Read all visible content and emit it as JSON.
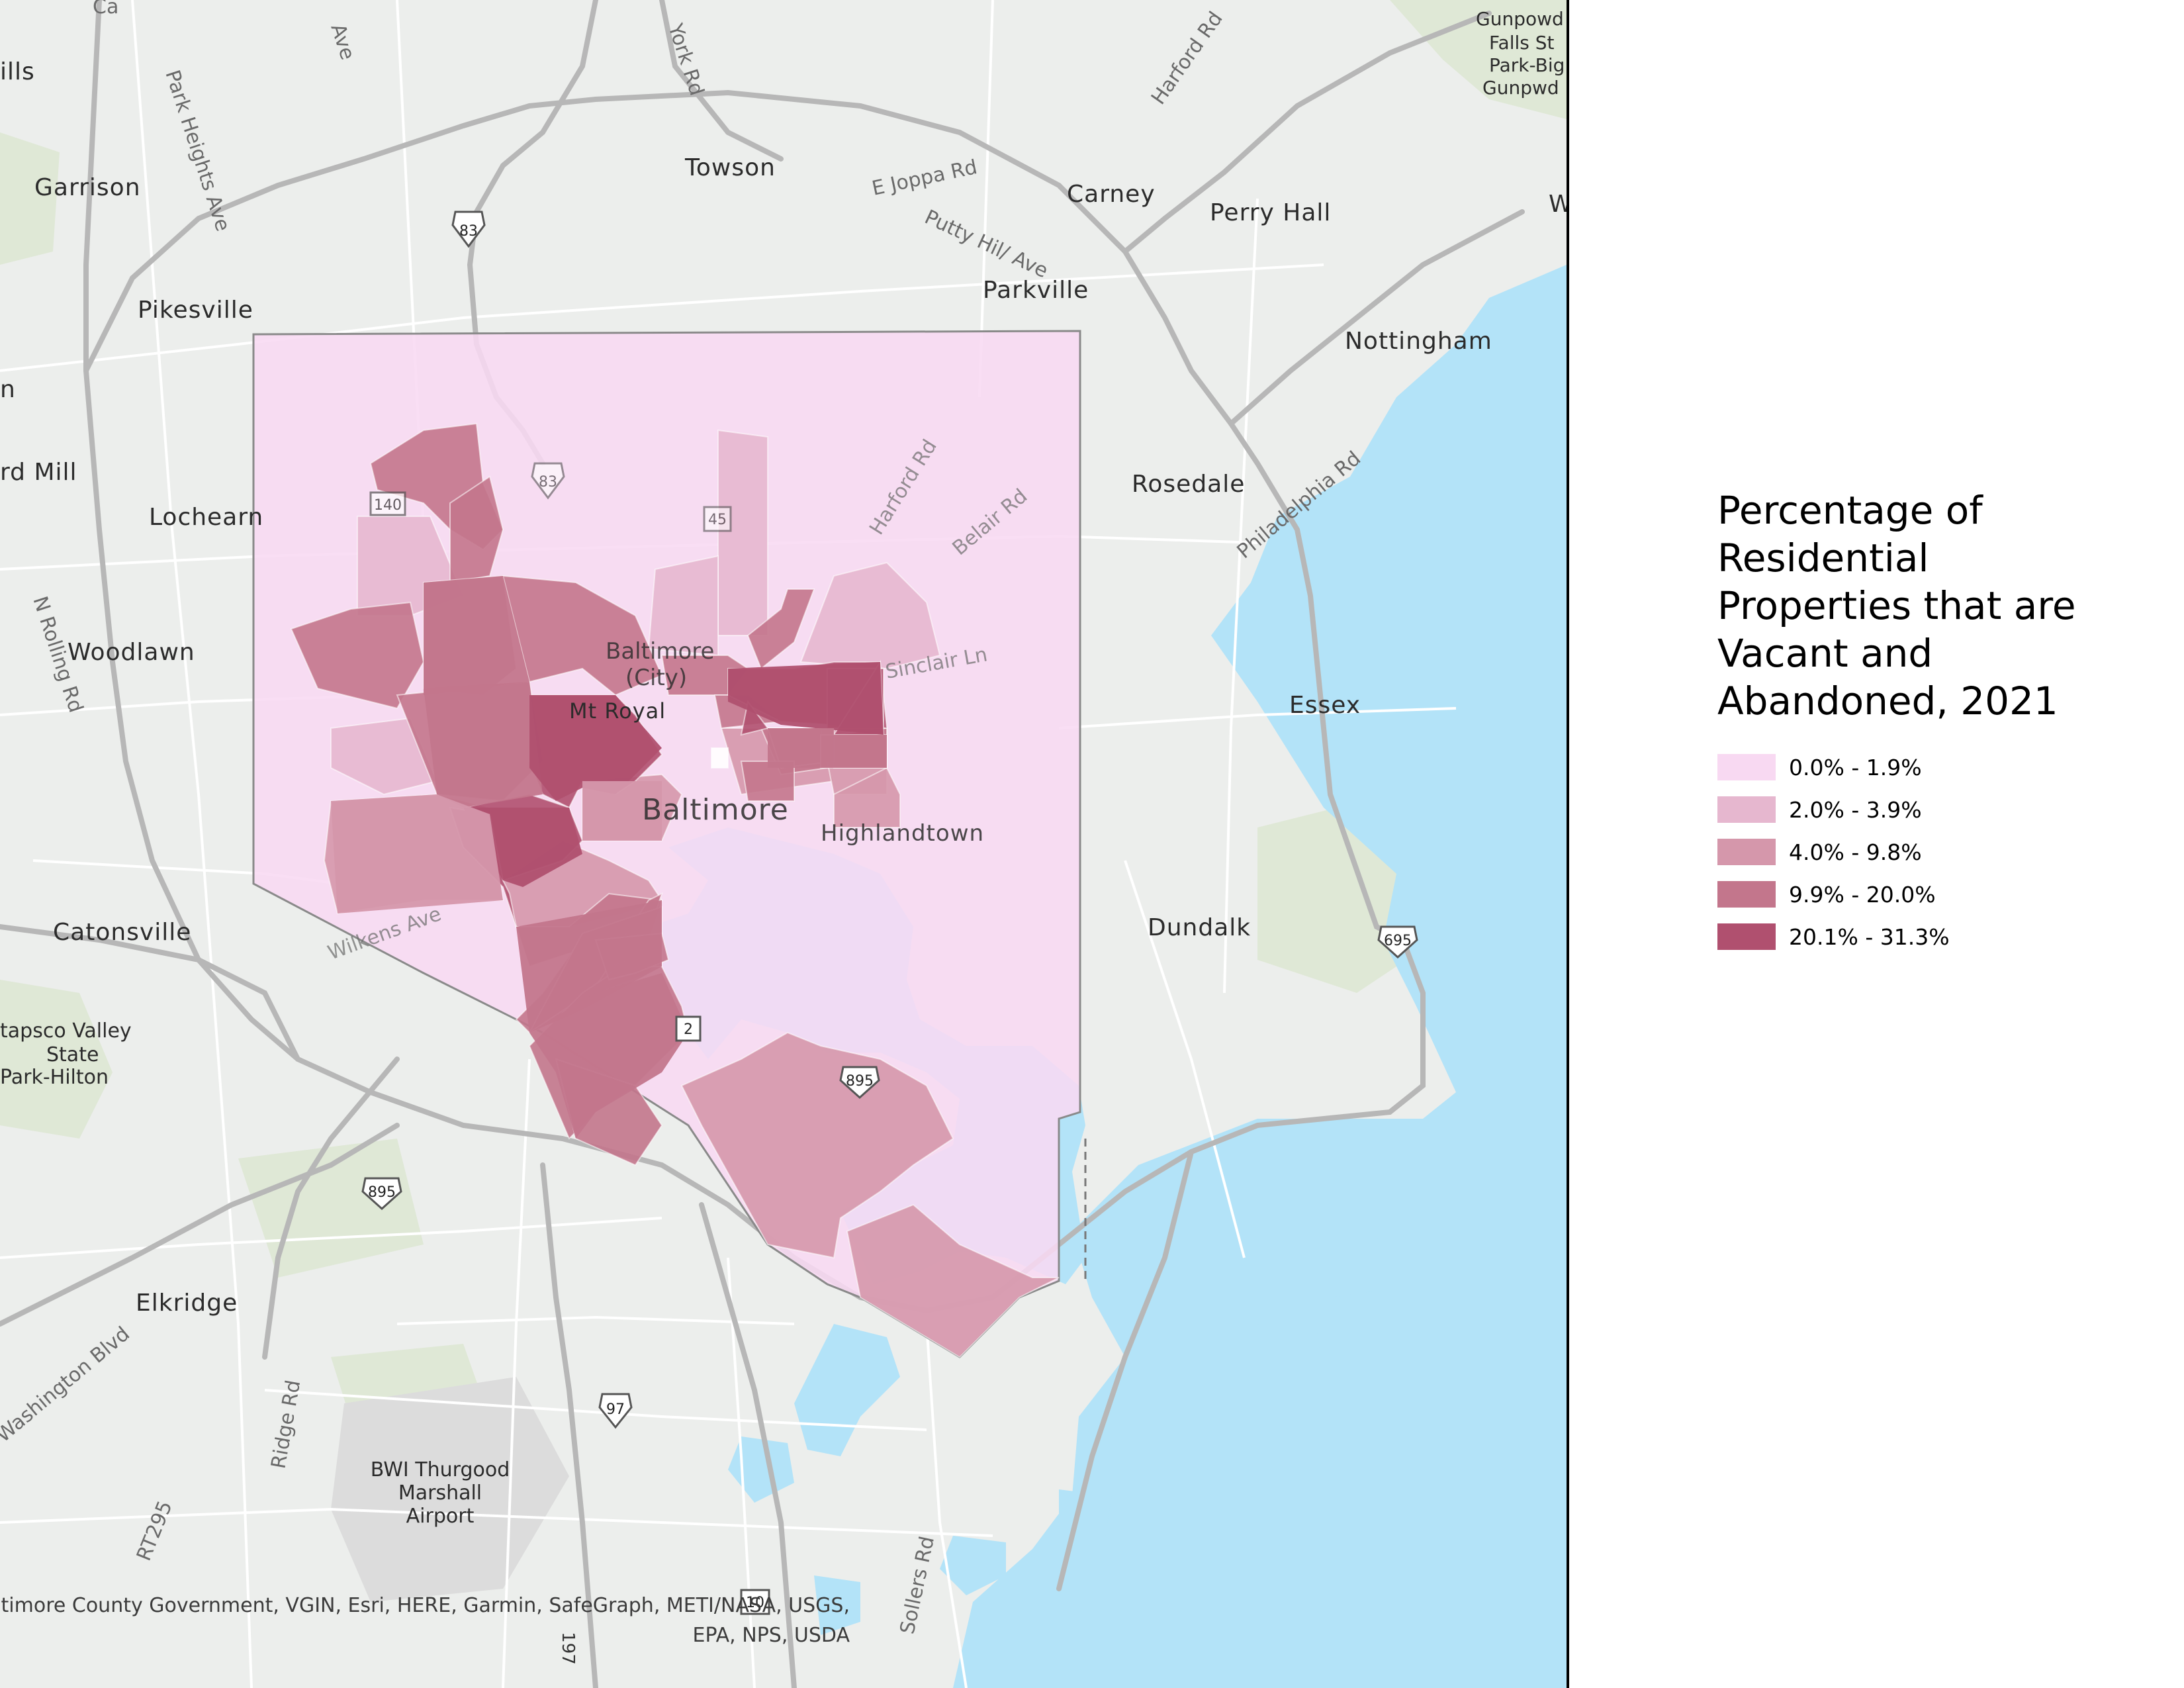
{
  "legend": {
    "title": "Percentage of\nResidential\nProperties that are\nVacant and\nAbandoned, 2021",
    "classes": [
      {
        "label": "0.0% - 1.9%",
        "color": "#f8d9f2"
      },
      {
        "label": "2.0% - 3.9%",
        "color": "#e6b7cf"
      },
      {
        "label": "4.0% - 9.8%",
        "color": "#d597ab"
      },
      {
        "label": "9.9% - 20.0%",
        "color": "#c3768c"
      },
      {
        "label": "20.1% - 31.3%",
        "color": "#b0506f"
      }
    ]
  },
  "places": {
    "towson": "Towson",
    "carney": "Carney",
    "perry_hall": "Perry Hall",
    "parkville": "Parkville",
    "nottingham": "Nottingham",
    "rosedale": "Rosedale",
    "essex": "Essex",
    "dundalk": "Dundalk",
    "garrison": "Garrison",
    "pikesville": "Pikesville",
    "lochearn": "Lochearn",
    "woodlawn": "Woodlawn",
    "catonsville": "Catonsville",
    "elkridge": "Elkridge",
    "baltimore": "Baltimore",
    "baltimore_city": "Baltimore\n(City)",
    "mt_royal": "Mt Royal",
    "highlandtown": "Highlandtown",
    "ills": "ills",
    "rd_mill": "rd Mill",
    "n": "n",
    "w": "W",
    "gunpowder": "Gunpowd\nFalls St\nPark-Big\nGunpwd",
    "patapsco": "tapsco Valley\nState\nPark-Hilton",
    "bwi": "BWI Thurgood\nMarshall\nAirport"
  },
  "roads": {
    "york_rd": "York Rd",
    "harford_rd_n": "Harford Rd",
    "e_joppa_rd": "E Joppa Rd",
    "putty_hill_ave": "Putty Hil/ Ave",
    "park_heights_ave": "Park Heights Ave",
    "n_rolling_rd": "N Rolling Rd",
    "harford_rd": "Harford Rd",
    "belair_rd": "Belair Rd",
    "sinclair_ln": "Sinclair Ln",
    "philadelphia_rd": "Philadelphia Rd",
    "wilkens_ave": "Wilkens Ave",
    "washington_blvd": "Washington Blvd",
    "ridge_rd": "Ridge Rd",
    "rt295": "RT295",
    "sollers_rd": "Sollers Rd",
    "ave": "Ave",
    "ca": "Ca"
  },
  "shields": {
    "i83_north": "83",
    "i83_city": "83",
    "us45": "45",
    "md140": "140",
    "md2": "2",
    "i895_city": "895",
    "i895_south": "895",
    "i695": "695",
    "i97": "97",
    "r197": "197",
    "r10": "10"
  },
  "attribution": "Baltimore County Government, VGIN, Esri, HERE, Garmin, SafeGraph, METI/NASA, USGS,\nEPA, NPS, USDA"
}
